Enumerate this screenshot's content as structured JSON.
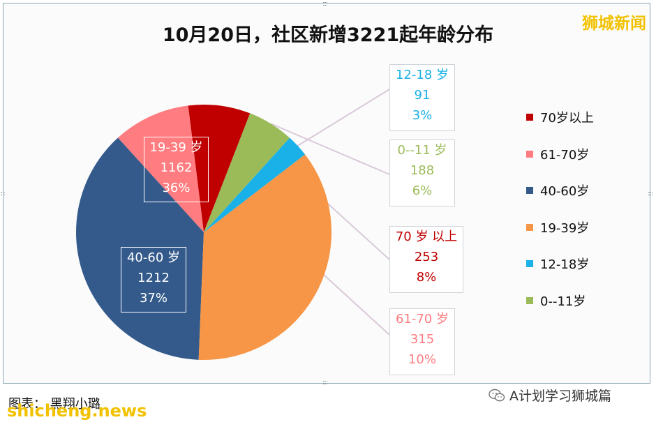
{
  "header": {
    "title": "10月20日，社区新增3221起年龄分布",
    "brand": "狮城新闻"
  },
  "footer": {
    "credit": "图表：  黑翔小璐",
    "site": "shicheng.news",
    "account": "A计划学习狮城篇"
  },
  "colors": {
    "70岁以上": "#c00000",
    "61-70岁": "#ff7c80",
    "40-60岁": "#335a8b",
    "19-39岁": "#f79646",
    "12-18岁": "#1ab1e8",
    "0--11岁": "#9bbb59",
    "leader": "#d9c9d9"
  },
  "callouts": {
    "c1218": {
      "name": "12-18 岁",
      "value": "91",
      "pct": "3%"
    },
    "c011": {
      "name": "0--11 岁",
      "value": "188",
      "pct": "6%"
    },
    "c70": {
      "name": "70 岁 以上",
      "value": "253",
      "pct": "8%"
    },
    "c6170": {
      "name": "61-70 岁",
      "value": "315",
      "pct": "10%"
    },
    "c1939": {
      "name": "19-39 岁",
      "value": "1162",
      "pct": "36%"
    },
    "c4060": {
      "name": "40-60 岁",
      "value": "1212",
      "pct": "37%"
    }
  },
  "chart_data": {
    "type": "pie",
    "title": "10月20日，社区新增3221起年龄分布",
    "categories": [
      "70岁以上",
      "61-70岁",
      "40-60岁",
      "19-39岁",
      "12-18岁",
      "0--11岁"
    ],
    "values": [
      253,
      315,
      1212,
      1162,
      91,
      188
    ],
    "percentages": [
      "8%",
      "10%",
      "37%",
      "36%",
      "3%",
      "6%"
    ],
    "legend": [
      "70岁以上",
      "61-70岁",
      "40-60岁",
      "19-39岁",
      "12-18岁",
      "0--11岁"
    ],
    "legend_position": "right"
  }
}
